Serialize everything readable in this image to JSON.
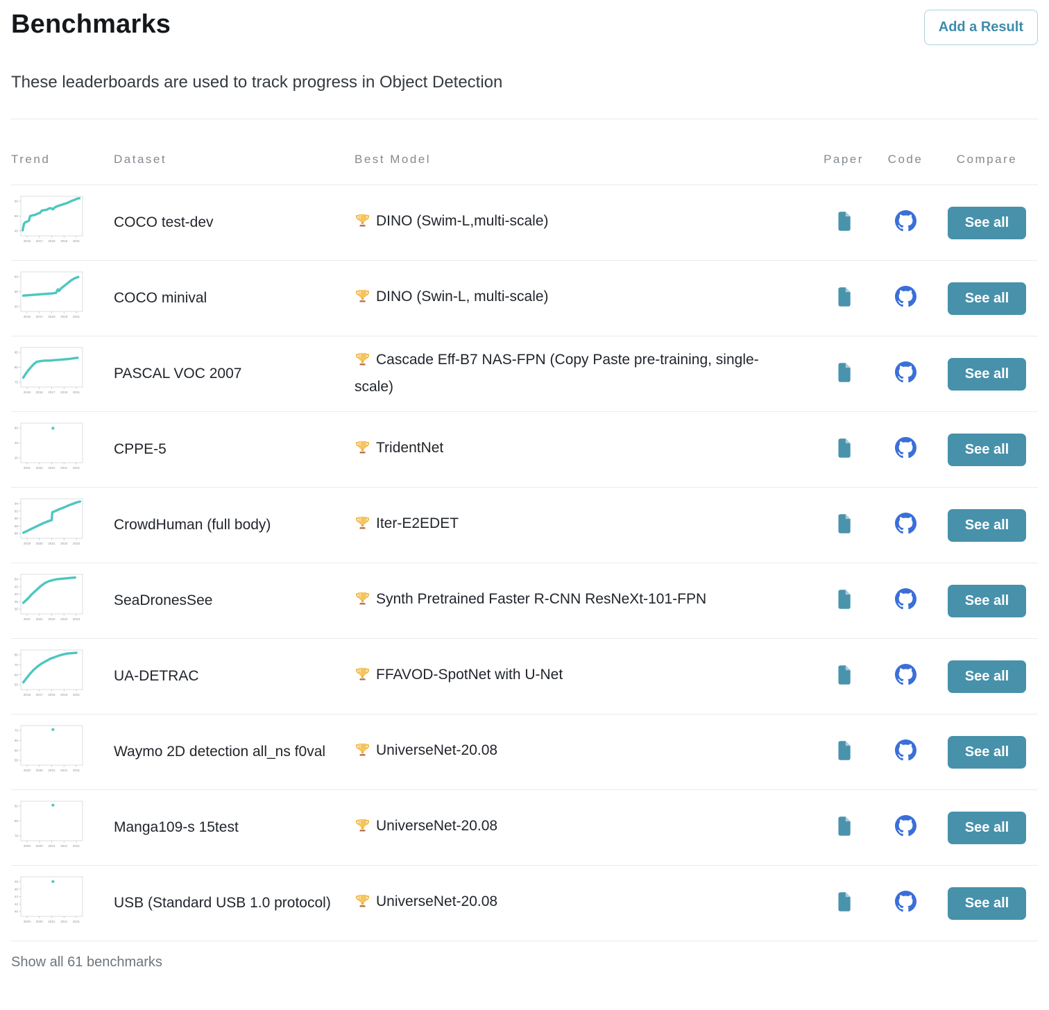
{
  "page": {
    "title": "Benchmarks",
    "subtitle": "These leaderboards are used to track progress in Object Detection",
    "add_result_label": "Add a Result",
    "show_all_label": "Show all 61 benchmarks"
  },
  "colors": {
    "trend_line": "#4ec6c0",
    "see_all_button": "#4791ab",
    "add_result_text": "#3e8cab",
    "paper_icon": "#4a93ad",
    "paper_icon_fold": "#a9cedc",
    "github_icon": "#3a6fd8",
    "header_gray": "#838a90",
    "row_border": "#e9eaec"
  },
  "table": {
    "columns": {
      "trend": "Trend",
      "dataset": "Dataset",
      "best_model": "Best Model",
      "paper": "Paper",
      "code": "Code",
      "compare": "Compare"
    },
    "see_all_label": "See all",
    "rows": [
      {
        "dataset": "COCO test-dev",
        "best_model": "DINO (Swim-L,multi-scale)",
        "trend": {
          "type": "line",
          "yticks": [
            "60",
            "50",
            "40"
          ],
          "xticks": [
            "2016",
            "2017",
            "2018",
            "2019",
            "2021"
          ],
          "points": [
            [
              3,
              14
            ],
            [
              5,
              30
            ],
            [
              7,
              34
            ],
            [
              10,
              36
            ],
            [
              13,
              38
            ],
            [
              15,
              50
            ],
            [
              19,
              52
            ],
            [
              23,
              53
            ],
            [
              27,
              56
            ],
            [
              31,
              58
            ],
            [
              34,
              64
            ],
            [
              38,
              65
            ],
            [
              42,
              66
            ],
            [
              45,
              69
            ],
            [
              49,
              70
            ],
            [
              52,
              67
            ],
            [
              55,
              72
            ],
            [
              59,
              75
            ],
            [
              63,
              77
            ],
            [
              67,
              79
            ],
            [
              71,
              81
            ],
            [
              75,
              83
            ],
            [
              79,
              86
            ],
            [
              83,
              89
            ],
            [
              87,
              91
            ],
            [
              91,
              94
            ],
            [
              95,
              95
            ]
          ]
        }
      },
      {
        "dataset": "COCO minival",
        "best_model": "DINO (Swin-L, multi-scale)",
        "trend": {
          "type": "line",
          "yticks": [
            "60",
            "50",
            "40"
          ],
          "xticks": [
            "2016",
            "2017",
            "2018",
            "2019",
            "2021"
          ],
          "points": [
            [
              4,
              40
            ],
            [
              12,
              41
            ],
            [
              20,
              42
            ],
            [
              28,
              43
            ],
            [
              36,
              44
            ],
            [
              44,
              45
            ],
            [
              52,
              46
            ],
            [
              57,
              47
            ],
            [
              60,
              56
            ],
            [
              62,
              52
            ],
            [
              65,
              58
            ],
            [
              69,
              63
            ],
            [
              73,
              68
            ],
            [
              77,
              73
            ],
            [
              81,
              78
            ],
            [
              85,
              82
            ],
            [
              89,
              85
            ],
            [
              93,
              87
            ]
          ]
        }
      },
      {
        "dataset": "PASCAL VOC 2007",
        "best_model": "Cascade Eff-B7 NAS-FPN (Copy Paste pre-training, single-scale)",
        "trend": {
          "type": "line",
          "yticks": [
            "85",
            "80",
            "75"
          ],
          "xticks": [
            "2015",
            "2016",
            "2017",
            "2019",
            "2021"
          ],
          "points": [
            [
              4,
              24
            ],
            [
              9,
              36
            ],
            [
              15,
              48
            ],
            [
              21,
              58
            ],
            [
              26,
              64
            ],
            [
              33,
              66
            ],
            [
              40,
              67
            ],
            [
              47,
              67
            ],
            [
              54,
              68
            ],
            [
              62,
              69
            ],
            [
              70,
              70
            ],
            [
              78,
              71
            ],
            [
              86,
              73
            ],
            [
              92,
              74
            ]
          ]
        }
      },
      {
        "dataset": "CPPE-5",
        "best_model": "TridentNet",
        "trend": {
          "type": "dot",
          "yticks": [
            "60",
            "40",
            "20"
          ],
          "xticks": [
            "2021",
            "2021",
            "2021",
            "2021",
            "2021"
          ],
          "points": [
            [
              52,
              87
            ]
          ]
        }
      },
      {
        "dataset": "CrowdHuman (full body)",
        "best_model": "Iter-E2EDET",
        "trend": {
          "type": "line",
          "yticks": [
            "94",
            "92",
            "90",
            "88",
            "86"
          ],
          "xticks": [
            "2019",
            "2020",
            "2021",
            "2022",
            "2023"
          ],
          "points": [
            [
              4,
              14
            ],
            [
              12,
              20
            ],
            [
              20,
              26
            ],
            [
              28,
              32
            ],
            [
              36,
              38
            ],
            [
              44,
              43
            ],
            [
              50,
              46
            ],
            [
              51,
              66
            ],
            [
              56,
              69
            ],
            [
              63,
              74
            ],
            [
              70,
              78
            ],
            [
              77,
              83
            ],
            [
              84,
              87
            ],
            [
              91,
              91
            ],
            [
              96,
              93
            ]
          ]
        }
      },
      {
        "dataset": "SeaDronesSee",
        "best_model": "Synth Pretrained Faster R-CNN ResNeXt-101-FPN",
        "trend": {
          "type": "line",
          "yticks": [
            "50",
            "45",
            "40",
            "35",
            "30"
          ],
          "xticks": [
            "2021",
            "2021",
            "2022",
            "2022",
            "2023"
          ],
          "points": [
            [
              4,
              28
            ],
            [
              11,
              38
            ],
            [
              18,
              50
            ],
            [
              25,
              60
            ],
            [
              32,
              70
            ],
            [
              39,
              78
            ],
            [
              46,
              83
            ],
            [
              53,
              86
            ],
            [
              60,
              88
            ],
            [
              67,
              89
            ],
            [
              74,
              90
            ],
            [
              81,
              91
            ],
            [
              88,
              92
            ]
          ]
        }
      },
      {
        "dataset": "UA-DETRAC",
        "best_model": "FFAVOD-SpotNet with U-Net",
        "trend": {
          "type": "line",
          "yticks": [
            "80",
            "70",
            "60",
            "50"
          ],
          "xticks": [
            "2016",
            "2017",
            "2018",
            "2019",
            "2021"
          ],
          "points": [
            [
              4,
              18
            ],
            [
              9,
              28
            ],
            [
              15,
              40
            ],
            [
              21,
              50
            ],
            [
              27,
              58
            ],
            [
              34,
              66
            ],
            [
              41,
              72
            ],
            [
              48,
              78
            ],
            [
              55,
              82
            ],
            [
              62,
              86
            ],
            [
              69,
              89
            ],
            [
              76,
              91
            ],
            [
              83,
              92
            ],
            [
              90,
              93
            ]
          ]
        }
      },
      {
        "dataset": "Waymo 2D detection all_ns f0val",
        "best_model": "UniverseNet-20.08",
        "trend": {
          "type": "dot",
          "yticks": [
            "70",
            "65",
            "60",
            "55"
          ],
          "xticks": [
            "2020",
            "2020",
            "2021",
            "2021",
            "2021"
          ],
          "points": [
            [
              52,
              90
            ]
          ]
        }
      },
      {
        "dataset": "Manga109-s 15test",
        "best_model": "UniverseNet-20.08",
        "trend": {
          "type": "dot",
          "yticks": [
            "82",
            "80",
            "78"
          ],
          "xticks": [
            "2020",
            "2020",
            "2021",
            "2021",
            "2021"
          ],
          "points": [
            [
              52,
              90
            ]
          ]
        }
      },
      {
        "dataset": "USB (Standard USB 1.0 protocol)",
        "best_model": "UniverseNet-20.08",
        "trend": {
          "type": "dot",
          "yticks": [
            "48",
            "46",
            "44",
            "42",
            "40"
          ],
          "xticks": [
            "2020",
            "2020",
            "2021",
            "2021",
            "2021"
          ],
          "points": [
            [
              52,
              88
            ]
          ]
        }
      }
    ]
  },
  "chart_data": {
    "type": "line",
    "note": "Ten trend sparklines, one per benchmark row; points are normalized [x 0-100, y 0-100 up]; see table.rows[].trend"
  }
}
